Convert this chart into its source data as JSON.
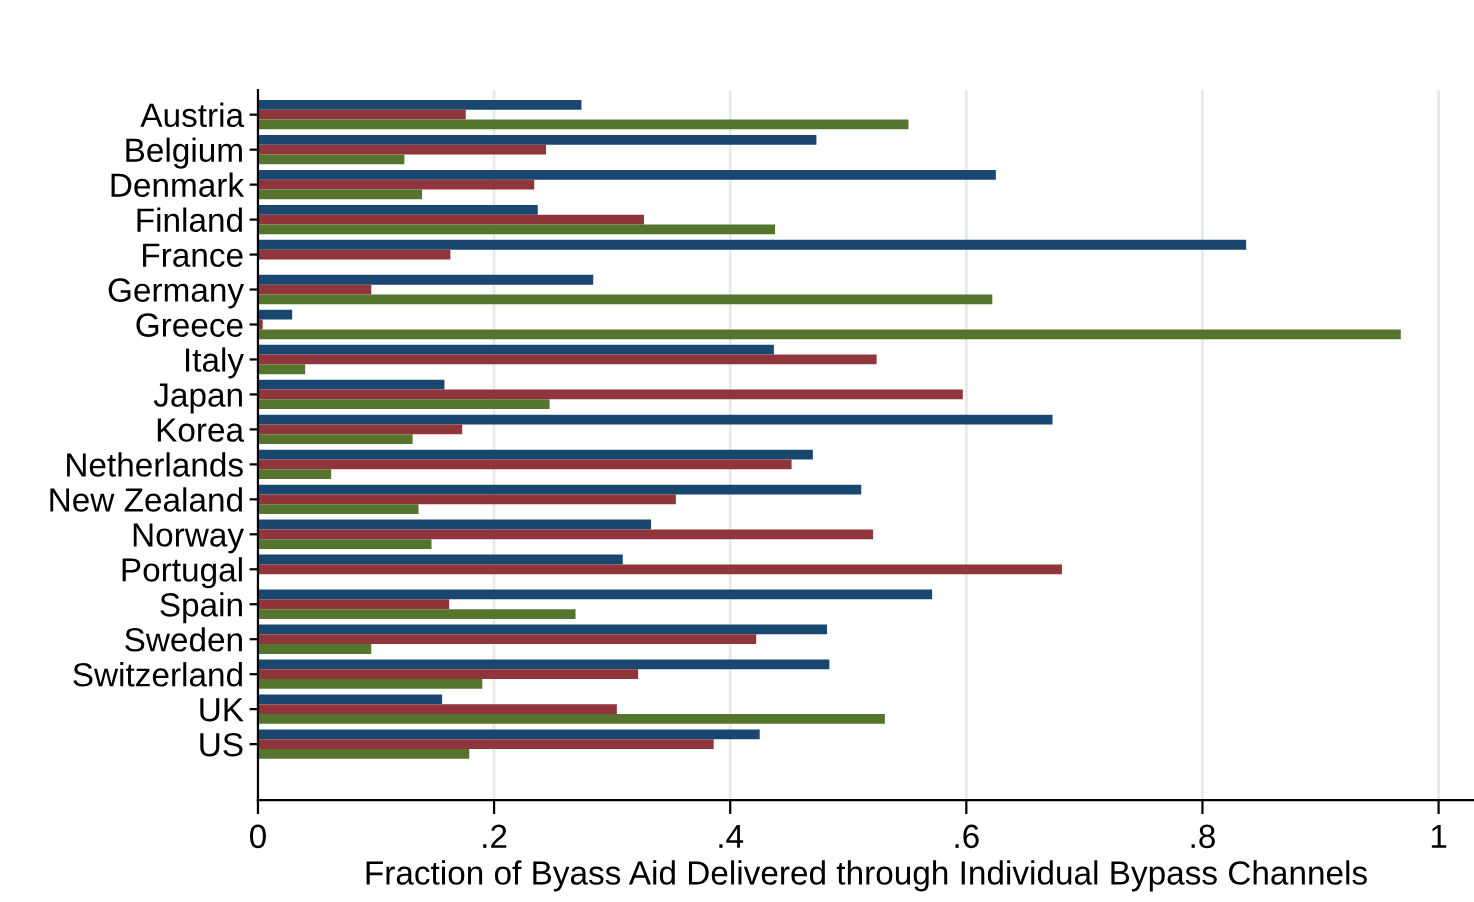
{
  "chart_data": {
    "type": "bar",
    "orientation": "horizontal",
    "xlabel": "Fraction of Byass Aid Delivered through Individual Bypass Channels",
    "categories": [
      "Austria",
      "Belgium",
      "Denmark",
      "Finland",
      "France",
      "Germany",
      "Greece",
      "Italy",
      "Japan",
      "Korea",
      "Netherlands",
      "New Zealand",
      "Norway",
      "Portugal",
      "Spain",
      "Sweden",
      "Switzerland",
      "UK",
      "US"
    ],
    "series": [
      {
        "color": "#1a476f",
        "values": [
          0.274,
          0.473,
          0.625,
          0.237,
          0.837,
          0.284,
          0.029,
          0.437,
          0.158,
          0.673,
          0.47,
          0.511,
          0.333,
          0.309,
          0.571,
          0.482,
          0.484,
          0.156,
          0.425
        ]
      },
      {
        "color": "#90353b",
        "values": [
          0.176,
          0.244,
          0.234,
          0.327,
          0.163,
          0.096,
          0.004,
          0.524,
          0.597,
          0.173,
          0.452,
          0.354,
          0.521,
          0.681,
          0.162,
          0.422,
          0.322,
          0.304,
          0.386
        ]
      },
      {
        "color": "#55752f",
        "values": [
          0.551,
          0.124,
          0.139,
          0.438,
          null,
          0.622,
          0.968,
          0.04,
          0.247,
          0.131,
          0.062,
          0.136,
          0.147,
          null,
          0.269,
          0.096,
          0.19,
          0.531,
          0.179
        ]
      }
    ],
    "xlim": [
      0,
      1.03
    ],
    "xticks": [
      0,
      {
        "value": 0.2,
        "label": ".2"
      },
      {
        "value": 0.4,
        "label": ".4"
      },
      {
        "value": 0.6,
        "label": ".6"
      },
      {
        "value": 0.8,
        "label": ".8"
      },
      1
    ],
    "grid": "x",
    "legend": false
  }
}
